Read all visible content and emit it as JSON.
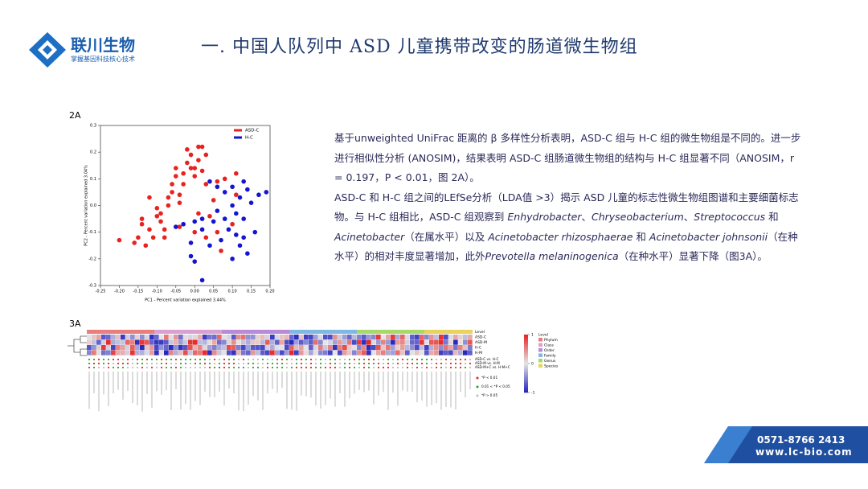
{
  "header": {
    "logo_name": "联川生物",
    "logo_slogan": "掌握基因科技核心技术",
    "title": "一. 中国人队列中 ASD 儿童携带改变的肠道微生物组"
  },
  "figure_2a_label": "2A",
  "figure_3a_label": "3A",
  "chart_data": {
    "type": "scatter",
    "xlabel": "PC1 - Percent variation explained 3.44%",
    "ylabel": "PC2 - Percent variation explained 3.04%",
    "xlim": [
      -0.25,
      0.2
    ],
    "xticks": [
      -0.25,
      {
        "value": -0.2,
        "label": "-0.20"
      },
      -0.15,
      {
        "value": -0.1,
        "label": "-0.10"
      },
      -0.05,
      {
        "value": 0,
        "label": "0.00"
      },
      0.05,
      {
        "value": 0.1,
        "label": "0.10"
      },
      0.15,
      {
        "value": 0.2,
        "label": "0.20"
      }
    ],
    "ylim": [
      -0.3,
      0.3
    ],
    "yticks": [
      -0.3,
      -0.2,
      -0.1,
      {
        "value": 0,
        "label": "0.0"
      },
      0.1,
      0.2,
      0.3
    ],
    "legend": "upper right",
    "series": [
      {
        "name": "ASD-C",
        "color": "#e8221f",
        "x": [
          -0.2,
          -0.16,
          -0.15,
          -0.14,
          -0.14,
          -0.13,
          -0.12,
          -0.11,
          -0.1,
          -0.1,
          -0.09,
          -0.08,
          -0.08,
          -0.07,
          -0.07,
          -0.06,
          -0.06,
          -0.05,
          -0.05,
          -0.04,
          -0.04,
          -0.03,
          -0.03,
          -0.02,
          -0.02,
          -0.01,
          -0.01,
          0,
          0,
          0.01,
          0.02,
          0.01,
          0.03,
          0.02,
          0.03,
          0.05,
          0.04,
          0.06,
          0.07,
          0.03,
          0,
          0.1,
          0.11,
          0.11,
          0.08,
          0.06,
          -0.12,
          -0.09,
          -0.04,
          0.01
        ],
        "values": [
          -0.13,
          -0.14,
          -0.12,
          -0.07,
          -0.05,
          -0.15,
          -0.09,
          -0.12,
          -0.04,
          -0.01,
          -0.03,
          -0.12,
          -0.09,
          0,
          0.03,
          0.05,
          0.08,
          0.11,
          0.14,
          0.01,
          0.04,
          0.08,
          0.12,
          0.16,
          0.21,
          0.14,
          0.19,
          0.11,
          0.14,
          0.17,
          0.22,
          0.22,
          0.19,
          0.13,
          0.08,
          0.02,
          -0.04,
          -0.1,
          -0.17,
          -0.12,
          -0.1,
          -0.07,
          0.04,
          0.12,
          0.1,
          0.09,
          0.03,
          -0.06,
          -0.08,
          -0.03
        ]
      },
      {
        "name": "H-C",
        "color": "#1515d0",
        "x": [
          0.04,
          0.06,
          0.08,
          0.1,
          0.12,
          0.14,
          0.17,
          0.13,
          0.19,
          0.15,
          0.1,
          0.06,
          0.02,
          0,
          -0.03,
          -0.05,
          0.08,
          0.11,
          0.13,
          0.09,
          0.11,
          0.13,
          0.07,
          0.04,
          0.02,
          -0.01,
          0,
          0.02,
          0.1,
          0.12,
          0.16,
          0.14,
          -0.01,
          0.05
        ],
        "values": [
          0.09,
          0.07,
          0.05,
          0.07,
          0.03,
          0.06,
          0.04,
          0.09,
          0.05,
          0.01,
          0,
          -0.02,
          -0.05,
          -0.06,
          -0.07,
          -0.08,
          -0.05,
          -0.03,
          -0.05,
          -0.09,
          -0.11,
          -0.12,
          -0.13,
          -0.15,
          -0.09,
          -0.14,
          -0.21,
          -0.28,
          -0.2,
          -0.15,
          -0.1,
          -0.18,
          -0.19,
          -0.06
        ]
      }
    ]
  },
  "text": {
    "paragraphs": [
      [
        {
          "text": "基于unweighted UniFrac 距离的 β 多样性分析表明，ASD-C 组与 H-C 组的微生物组是不同的。进一步进行相似性分析 (ANOSIM)，结果表明 ASD-C 组肠道微生物组的结构与 H-C 组显著不同（ANOSIM，r = 0.197，P < 0.01，图 2A）。",
          "italic": false
        }
      ],
      [
        {
          "text": "ASD-C 和 H-C 组之间的LEfSe分析（LDA值 >3）揭示 ASD 儿童的标志性微生物组图谱和主要细菌标志物。与 H-C 组相比，ASD-C 组观察到 ",
          "italic": false
        },
        {
          "text": "Enhydrobacter",
          "italic": true
        },
        {
          "text": "、",
          "italic": false
        },
        {
          "text": "Chryseobacterium",
          "italic": true
        },
        {
          "text": "、",
          "italic": false
        },
        {
          "text": "Streptococcus",
          "italic": true
        },
        {
          "text": " 和 ",
          "italic": false
        },
        {
          "text": "Acinetobacter",
          "italic": true
        },
        {
          "text": "（在属水平）以及 ",
          "italic": false
        },
        {
          "text": "Acinetobacter rhizosphaerae",
          "italic": true
        },
        {
          "text": " 和 ",
          "italic": false
        },
        {
          "text": "Acinetobacter johnsonii",
          "italic": true
        },
        {
          "text": "（在种水平）的相对丰度显著增加，此外",
          "italic": false
        },
        {
          "text": "Prevotella melaninogenica",
          "italic": true
        },
        {
          "text": "（在种水平）显著下降（图3A）。",
          "italic": false
        }
      ]
    ]
  },
  "heatmap": {
    "rows": [
      "ASD-C",
      "ASD-M",
      "H-C",
      "H-M"
    ],
    "comparisons": [
      "ASD-C vs. H-C",
      "ASD-M vs. H-M",
      "ASD-M+C vs. H-M+C"
    ],
    "p_legend": [
      {
        "label": "*P < 0.01",
        "color": "#e8221f"
      },
      {
        "label": "0.01 < *P < 0.05",
        "color": "#2ca02c"
      },
      {
        "label": "*P > 0.05",
        "color": "#bbbbbb"
      }
    ],
    "level_title": "Level",
    "levels": [
      {
        "name": "Phylum",
        "color": "#e87e7e"
      },
      {
        "name": "Class",
        "color": "#d9a0d0"
      },
      {
        "name": "Order",
        "color": "#b78bd6"
      },
      {
        "name": "Family",
        "color": "#7fb8e0"
      },
      {
        "name": "Genus",
        "color": "#a6d96a"
      },
      {
        "name": "Species",
        "color": "#e8d35c"
      }
    ],
    "colorbar": [
      1,
      0,
      -1
    ]
  },
  "footer": {
    "phone": "0571-8766 2413",
    "website": "www.lc-bio.com"
  }
}
